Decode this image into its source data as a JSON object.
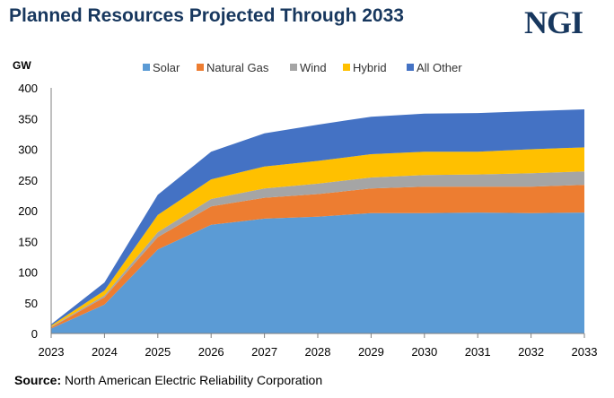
{
  "header": {
    "title": "Planned Resources Projected Through 2033",
    "logo": "NGI"
  },
  "footer": {
    "source_label": "Source:",
    "source_text": "North American Electric Reliability Corporation"
  },
  "chart_data": {
    "type": "area",
    "stacked": true,
    "title": "Planned Resources Projected Through 2033",
    "ylabel": "GW",
    "xlabel": "",
    "ylim": [
      0,
      400
    ],
    "yticks": [
      0,
      50,
      100,
      150,
      200,
      250,
      300,
      350,
      400
    ],
    "categories": [
      "2023",
      "2024",
      "2025",
      "2026",
      "2027",
      "2028",
      "2029",
      "2030",
      "2031",
      "2032",
      "2033"
    ],
    "legend_position": "top",
    "series": [
      {
        "name": "Solar",
        "color": "#5b9bd5",
        "values": [
          8,
          47,
          137,
          177,
          187,
          190,
          196,
          196,
          197,
          196,
          197
        ]
      },
      {
        "name": "Natural Gas",
        "color": "#ed7d31",
        "values": [
          2,
          12,
          20,
          30,
          34,
          37,
          40,
          43,
          42,
          43,
          45
        ]
      },
      {
        "name": "Wind",
        "color": "#a5a5a5",
        "values": [
          1,
          3,
          8,
          12,
          15,
          17,
          18,
          19,
          20,
          22,
          22
        ]
      },
      {
        "name": "Hybrid",
        "color": "#ffc000",
        "values": [
          2,
          8,
          28,
          32,
          36,
          37,
          38,
          38,
          37,
          39,
          39
        ]
      },
      {
        "name": "All Other",
        "color": "#4472c4",
        "values": [
          2,
          13,
          33,
          45,
          54,
          59,
          61,
          62,
          63,
          62,
          62
        ]
      }
    ]
  }
}
